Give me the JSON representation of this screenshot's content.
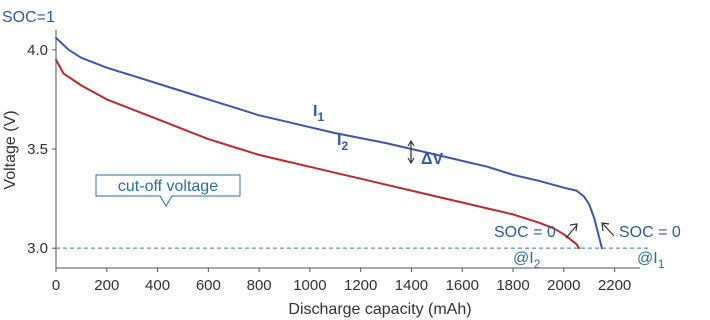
{
  "chart_data": {
    "type": "line",
    "title": "",
    "xlabel": "Discharge capacity (mAh)",
    "ylabel": "Voltage (V)",
    "xlim": [
      0,
      2300
    ],
    "ylim": [
      2.9,
      4.1
    ],
    "x_ticks": [
      "0",
      "200",
      "400",
      "600",
      "800",
      "1000",
      "1200",
      "1400",
      "1600",
      "1800",
      "2000",
      "2200"
    ],
    "y_ticks": [
      "3.0",
      "3.5",
      "4.0"
    ],
    "series": [
      {
        "name": "I1",
        "color": "#3f56b0",
        "x": [
          0,
          50,
          100,
          200,
          300,
          400,
          500,
          600,
          700,
          800,
          900,
          1000,
          1100,
          1200,
          1300,
          1400,
          1500,
          1600,
          1700,
          1800,
          1900,
          2000,
          2050,
          2080,
          2100,
          2120,
          2140,
          2150
        ],
        "y": [
          4.06,
          4.0,
          3.96,
          3.91,
          3.87,
          3.83,
          3.79,
          3.75,
          3.71,
          3.67,
          3.64,
          3.61,
          3.58,
          3.555,
          3.53,
          3.5,
          3.47,
          3.44,
          3.41,
          3.37,
          3.34,
          3.305,
          3.29,
          3.26,
          3.22,
          3.15,
          3.05,
          3.0
        ]
      },
      {
        "name": "I2",
        "color": "#c0272d",
        "x": [
          0,
          30,
          100,
          200,
          300,
          400,
          500,
          600,
          700,
          800,
          900,
          1000,
          1100,
          1200,
          1300,
          1400,
          1500,
          1600,
          1700,
          1800,
          1900,
          1960,
          2000,
          2030,
          2050,
          2060
        ],
        "y": [
          3.95,
          3.88,
          3.82,
          3.75,
          3.7,
          3.65,
          3.6,
          3.55,
          3.51,
          3.47,
          3.44,
          3.41,
          3.38,
          3.35,
          3.32,
          3.29,
          3.26,
          3.23,
          3.2,
          3.17,
          3.13,
          3.1,
          3.07,
          3.04,
          3.02,
          3.0
        ]
      }
    ],
    "cutoff": {
      "y": 3.0,
      "color": "#3a78c8"
    },
    "annotations": {
      "soc1": "SOC=1",
      "i1_letter": "I",
      "i1_sub": "1",
      "i2_letter": "I",
      "i2_sub": "2",
      "delta_v": "ΔV",
      "cutoff_label": "cut-off voltage",
      "soc0_i2": "SOC = 0",
      "at_i2_prefix": "@I",
      "at_i2_sub": "2",
      "soc0_i1": "SOC = 0",
      "at_i1_prefix": "@I",
      "at_i1_sub": "1"
    },
    "grid": false,
    "legend": "none"
  }
}
